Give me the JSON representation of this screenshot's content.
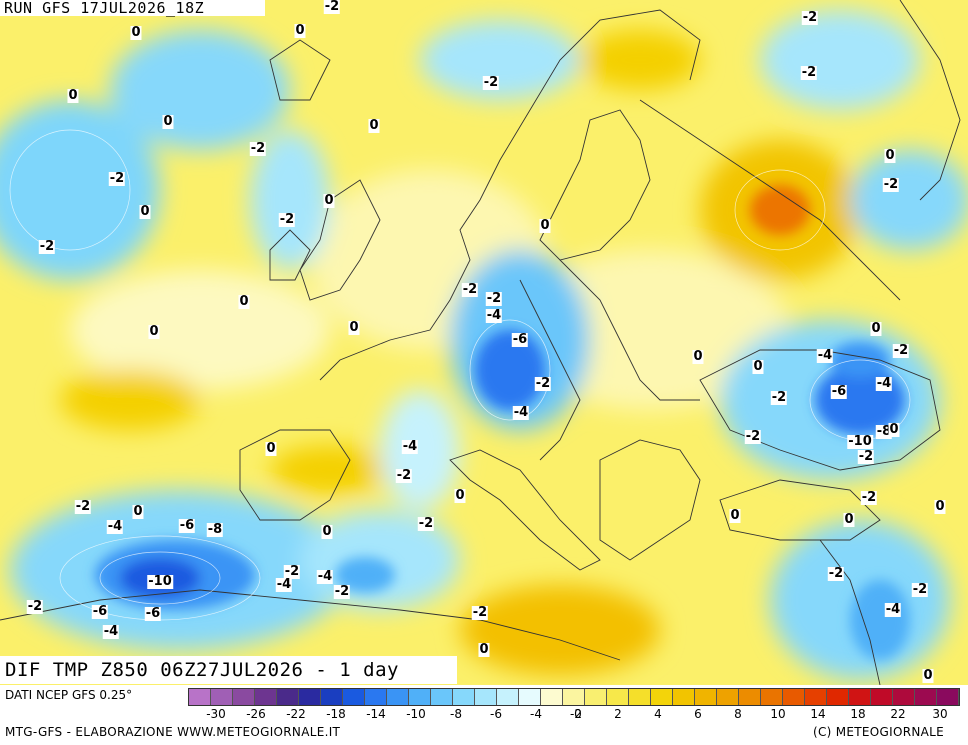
{
  "header": {
    "run_label": "RUN GFS 17JUL2026_18Z"
  },
  "map": {
    "title": "DIF TMP Z850 06Z27JUL2026 - 1 day",
    "value_labels": [
      {
        "t": "-2"
      },
      {
        "t": "-2"
      },
      {
        "t": "0"
      },
      {
        "t": "0"
      },
      {
        "t": "-2"
      },
      {
        "t": "-2"
      },
      {
        "t": "0"
      },
      {
        "t": "0"
      },
      {
        "t": "0"
      },
      {
        "t": "-2"
      },
      {
        "t": "-2"
      },
      {
        "t": "0"
      },
      {
        "t": "-2"
      },
      {
        "t": "0"
      },
      {
        "t": "-2"
      },
      {
        "t": "0"
      },
      {
        "t": "-2"
      },
      {
        "t": "0"
      },
      {
        "t": "0"
      },
      {
        "t": "0"
      },
      {
        "t": "0"
      },
      {
        "t": "-2"
      },
      {
        "t": "-4"
      },
      {
        "t": "-6"
      },
      {
        "t": "-2"
      },
      {
        "t": "-4"
      },
      {
        "t": "0"
      },
      {
        "t": "0"
      },
      {
        "t": "-4"
      },
      {
        "t": "-2"
      },
      {
        "t": "0"
      },
      {
        "t": "-6"
      },
      {
        "t": "-4"
      },
      {
        "t": "-8"
      },
      {
        "t": "-2"
      },
      {
        "t": "-10"
      },
      {
        "t": "0"
      },
      {
        "t": "-2"
      },
      {
        "t": "0"
      },
      {
        "t": "-2"
      },
      {
        "t": "-2"
      },
      {
        "t": "-4"
      },
      {
        "t": "-2"
      },
      {
        "t": "-6"
      },
      {
        "t": "-4"
      },
      {
        "t": "-6"
      },
      {
        "t": "-8"
      },
      {
        "t": "-2"
      },
      {
        "t": "-10"
      },
      {
        "t": "-2"
      },
      {
        "t": "-4"
      },
      {
        "t": "-2"
      },
      {
        "t": "-4"
      },
      {
        "t": "-6"
      },
      {
        "t": "-4"
      },
      {
        "t": "-2"
      },
      {
        "t": "0"
      },
      {
        "t": "0"
      },
      {
        "t": "-2"
      },
      {
        "t": "0"
      },
      {
        "t": "0"
      },
      {
        "t": "-2"
      },
      {
        "t": "0"
      },
      {
        "t": "0"
      },
      {
        "t": "-2"
      },
      {
        "t": "-2"
      },
      {
        "t": "-4"
      },
      {
        "t": "-2"
      },
      {
        "t": "0"
      },
      {
        "t": "0"
      }
    ]
  },
  "legend": {
    "source": "DATI NCEP GFS 0.25°",
    "ticks": [
      "-30",
      "-26",
      "-22",
      "-18",
      "-14",
      "-10",
      "-8",
      "-6",
      "-4",
      "-2",
      "0",
      "2",
      "4",
      "6",
      "8",
      "10",
      "14",
      "18",
      "22",
      "30"
    ],
    "colors": [
      "#b873c8",
      "#a05fb5",
      "#8a4aa0",
      "#6d3590",
      "#4a2a8a",
      "#2a2aa0",
      "#1a3ec0",
      "#1a5ae0",
      "#2a78f0",
      "#3a94f5",
      "#50b0f8",
      "#6ac6fa",
      "#86d8fb",
      "#a6e6fc",
      "#c6f2fd",
      "#e6fbfe",
      "#fdfbd0",
      "#fbf5a0",
      "#f9ef70",
      "#f7e84a",
      "#f5df2a",
      "#f3d40a",
      "#f2c400",
      "#f0b400",
      "#eea200",
      "#ec8c00",
      "#ea7400",
      "#e85a00",
      "#e64000",
      "#e02800",
      "#d01414",
      "#c00a28",
      "#ae0a3c",
      "#9c0a50",
      "#8a0a5e"
    ],
    "credits": "MTG-GFS - ELABORAZIONE WWW.METEOGIORNALE.IT",
    "copyright": "(C) METEOGIORNALE"
  }
}
